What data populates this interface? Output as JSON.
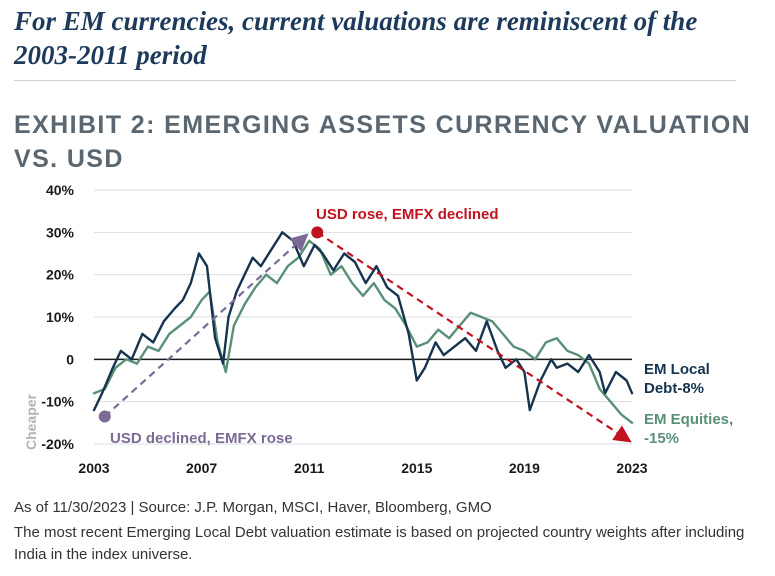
{
  "headline": "For EM currencies, current valuations are reminiscent of the 2003-2011 period",
  "colors": {
    "headline": "#1d3a5c",
    "local_debt": "#16344f",
    "equities": "#5a9078",
    "red_annotation": "#c1121f",
    "purple_annotation": "#7b6a93",
    "cheaper_label": "#b3b3b3"
  },
  "chart_data": {
    "type": "line",
    "title": "EXHIBIT 2: EMERGING ASSETS CURRENCY VALUATION VS. USD",
    "xlabel": "",
    "ylabel": "",
    "xlim": [
      2003,
      2023
    ],
    "ylim": [
      -20,
      40
    ],
    "x_ticks": [
      "2003",
      "2007",
      "2011",
      "2015",
      "2019",
      "2023"
    ],
    "y_ticks": [
      40,
      30,
      20,
      10,
      0,
      -10,
      -20
    ],
    "y_tick_labels": [
      "40%",
      "30%",
      "20%",
      "10%",
      "0",
      "-10%",
      "-20%"
    ],
    "grid": true,
    "side_label": "Cheaper",
    "series": [
      {
        "name": "EM Local Debt-8%",
        "x": [
          2003.0,
          2003.3,
          2003.7,
          2004.0,
          2004.4,
          2004.8,
          2005.2,
          2005.6,
          2006.0,
          2006.3,
          2006.6,
          2006.9,
          2007.2,
          2007.5,
          2007.8,
          2008.0,
          2008.3,
          2008.6,
          2008.9,
          2009.2,
          2009.6,
          2010.0,
          2010.4,
          2010.8,
          2011.2,
          2011.5,
          2011.9,
          2012.3,
          2012.7,
          2013.1,
          2013.5,
          2013.9,
          2014.3,
          2014.7,
          2015.0,
          2015.3,
          2015.7,
          2016.0,
          2016.4,
          2016.8,
          2017.2,
          2017.6,
          2018.0,
          2018.3,
          2018.7,
          2019.0,
          2019.2,
          2019.6,
          2020.0,
          2020.2,
          2020.6,
          2021.0,
          2021.4,
          2021.8,
          2022.0,
          2022.4,
          2022.8,
          2023.0
        ],
        "values": [
          -12,
          -8,
          -2,
          2,
          0,
          6,
          4,
          9,
          12,
          14,
          18,
          25,
          22,
          5,
          -1,
          10,
          16,
          20,
          24,
          22,
          26,
          30,
          28,
          22,
          27,
          25,
          21,
          25,
          23,
          18,
          22,
          17,
          15,
          6,
          -5,
          -2,
          4,
          1,
          3,
          5,
          2,
          9,
          2,
          -2,
          0,
          -3,
          -12,
          -5,
          0,
          -2,
          -1,
          -3,
          1,
          -3,
          -8,
          -3,
          -5,
          -8
        ]
      },
      {
        "name": "EM Equities, -15%",
        "x": [
          2003.0,
          2003.4,
          2003.8,
          2004.2,
          2004.6,
          2005.0,
          2005.4,
          2005.8,
          2006.2,
          2006.6,
          2007.0,
          2007.3,
          2007.6,
          2007.9,
          2008.2,
          2008.6,
          2009.0,
          2009.4,
          2009.8,
          2010.2,
          2010.6,
          2011.0,
          2011.4,
          2011.8,
          2012.2,
          2012.6,
          2013.0,
          2013.4,
          2013.8,
          2014.2,
          2014.6,
          2015.0,
          2015.4,
          2015.8,
          2016.2,
          2016.6,
          2017.0,
          2017.4,
          2017.8,
          2018.2,
          2018.6,
          2019.0,
          2019.4,
          2019.8,
          2020.2,
          2020.6,
          2021.0,
          2021.4,
          2021.8,
          2022.2,
          2022.6,
          2023.0
        ],
        "values": [
          -8,
          -7,
          -2,
          0,
          -1,
          3,
          2,
          6,
          8,
          10,
          14,
          16,
          4,
          -3,
          8,
          13,
          17,
          20,
          18,
          22,
          24,
          28,
          26,
          20,
          22,
          18,
          15,
          18,
          14,
          12,
          8,
          3,
          4,
          7,
          5,
          8,
          11,
          10,
          9,
          6,
          3,
          2,
          0,
          4,
          5,
          2,
          1,
          -1,
          -7,
          -10,
          -13,
          -15
        ]
      }
    ],
    "annotations": [
      {
        "text": "USD rose, EMFX declined",
        "from": [
          2011.3,
          30
        ],
        "to": [
          2023.0,
          -20
        ],
        "color": "red"
      },
      {
        "text": "USD declined, EMFX rose",
        "from": [
          2003.4,
          -13.5
        ],
        "to": [
          2011.0,
          30
        ],
        "color": "purple"
      }
    ],
    "end_labels": [
      {
        "series": 0,
        "lines": [
          "EM Local",
          "Debt-8%"
        ]
      },
      {
        "series": 1,
        "lines": [
          "EM Equities,",
          "-15%"
        ]
      }
    ]
  },
  "footer": {
    "source": "As of 11/30/2023 | Source: J.P. Morgan, MSCI, Haver, Bloomberg, GMO",
    "note": "The most recent Emerging Local Debt valuation estimate is based on projected country weights after including India in the index universe."
  }
}
